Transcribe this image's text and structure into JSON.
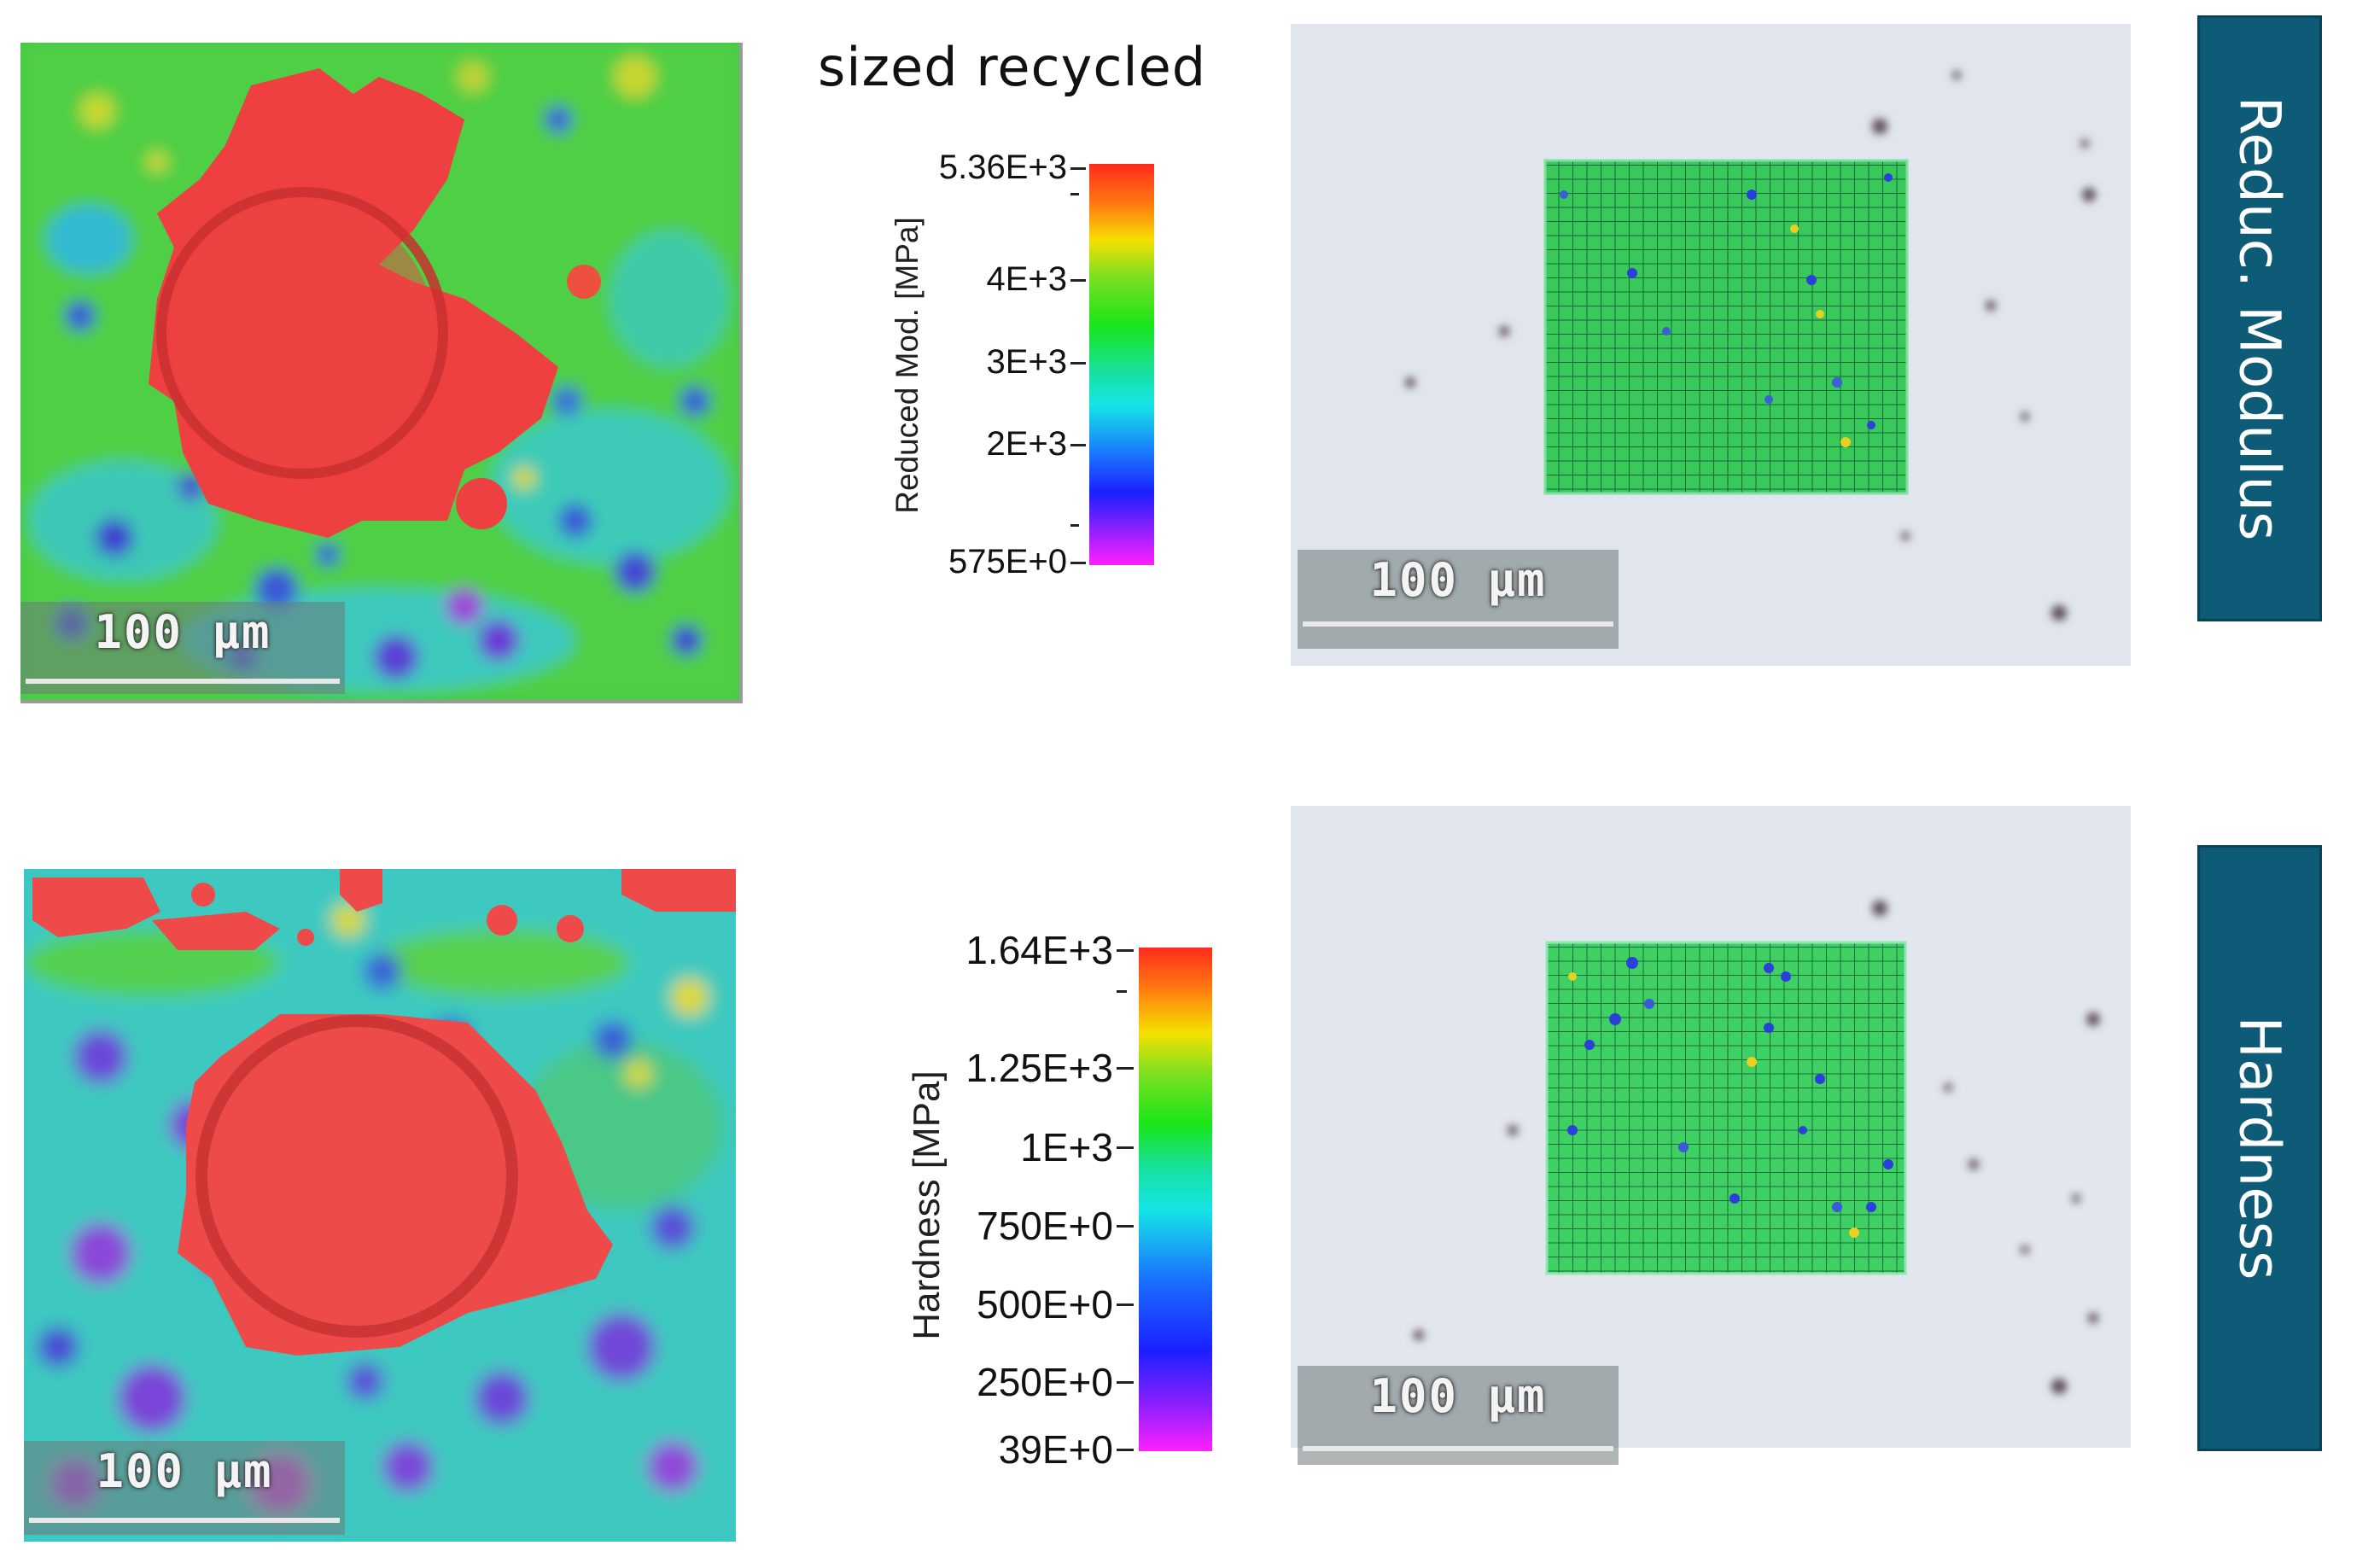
{
  "title": "sized recycled",
  "scale_bar_label": "100 µm",
  "rows": [
    {
      "side_tab": "Reduc. Modulus",
      "colorbar": {
        "label": "Reduced Mod. [MPa]",
        "ticks": [
          "5.36E+3",
          "4E+3",
          "3E+3",
          "2E+3",
          "575E+0"
        ]
      }
    },
    {
      "side_tab": "Hardness",
      "colorbar": {
        "label": "Hardness [MPa]",
        "ticks": [
          "1.64E+3",
          "1.25E+3",
          "1E+3",
          "750E+0",
          "500E+0",
          "250E+0",
          "39E+0"
        ]
      }
    }
  ],
  "colors": {
    "tab_fill": "#0e5b78",
    "indent_red": "#ee3c3c"
  }
}
